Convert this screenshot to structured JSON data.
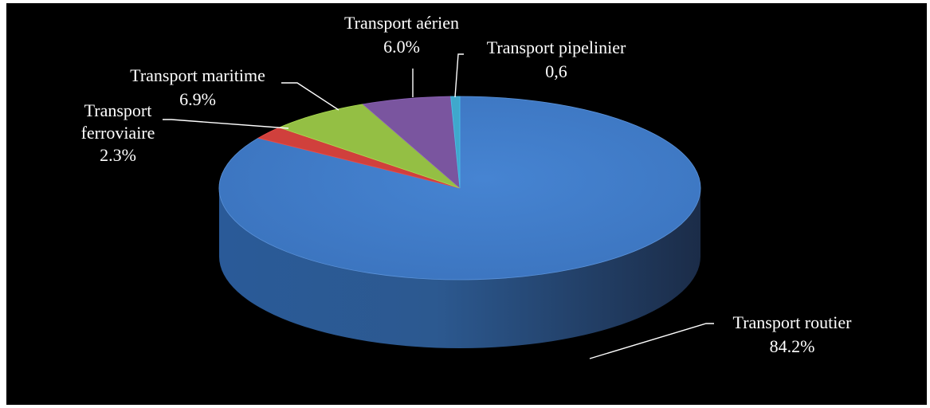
{
  "chart_data": {
    "type": "pie",
    "style": "3d",
    "title": "",
    "slices": [
      {
        "name": "Transport routier",
        "value": 84.2,
        "label_lines": [
          "Transport routier",
          "84.2%"
        ],
        "color": "#3F79C6"
      },
      {
        "name": "Transport ferroviaire",
        "value": 2.3,
        "label_lines": [
          "Transport",
          "ferroviaire",
          "2.3%"
        ],
        "color": "#D0403C"
      },
      {
        "name": "Transport maritime",
        "value": 6.9,
        "label_lines": [
          "Transport maritime",
          "6.9%"
        ],
        "color": "#94BF44"
      },
      {
        "name": "Transport aérien",
        "value": 6.0,
        "label_lines": [
          "Transport aérien",
          "6.0%"
        ],
        "color": "#7A559F"
      },
      {
        "name": "Transport pipelinier",
        "value": 0.6,
        "label_lines": [
          "Transport pipelinier",
          "0,6"
        ],
        "color": "#3FA8CC"
      }
    ],
    "legend": "none",
    "label_color": "#ffffff",
    "background": "#000000"
  }
}
